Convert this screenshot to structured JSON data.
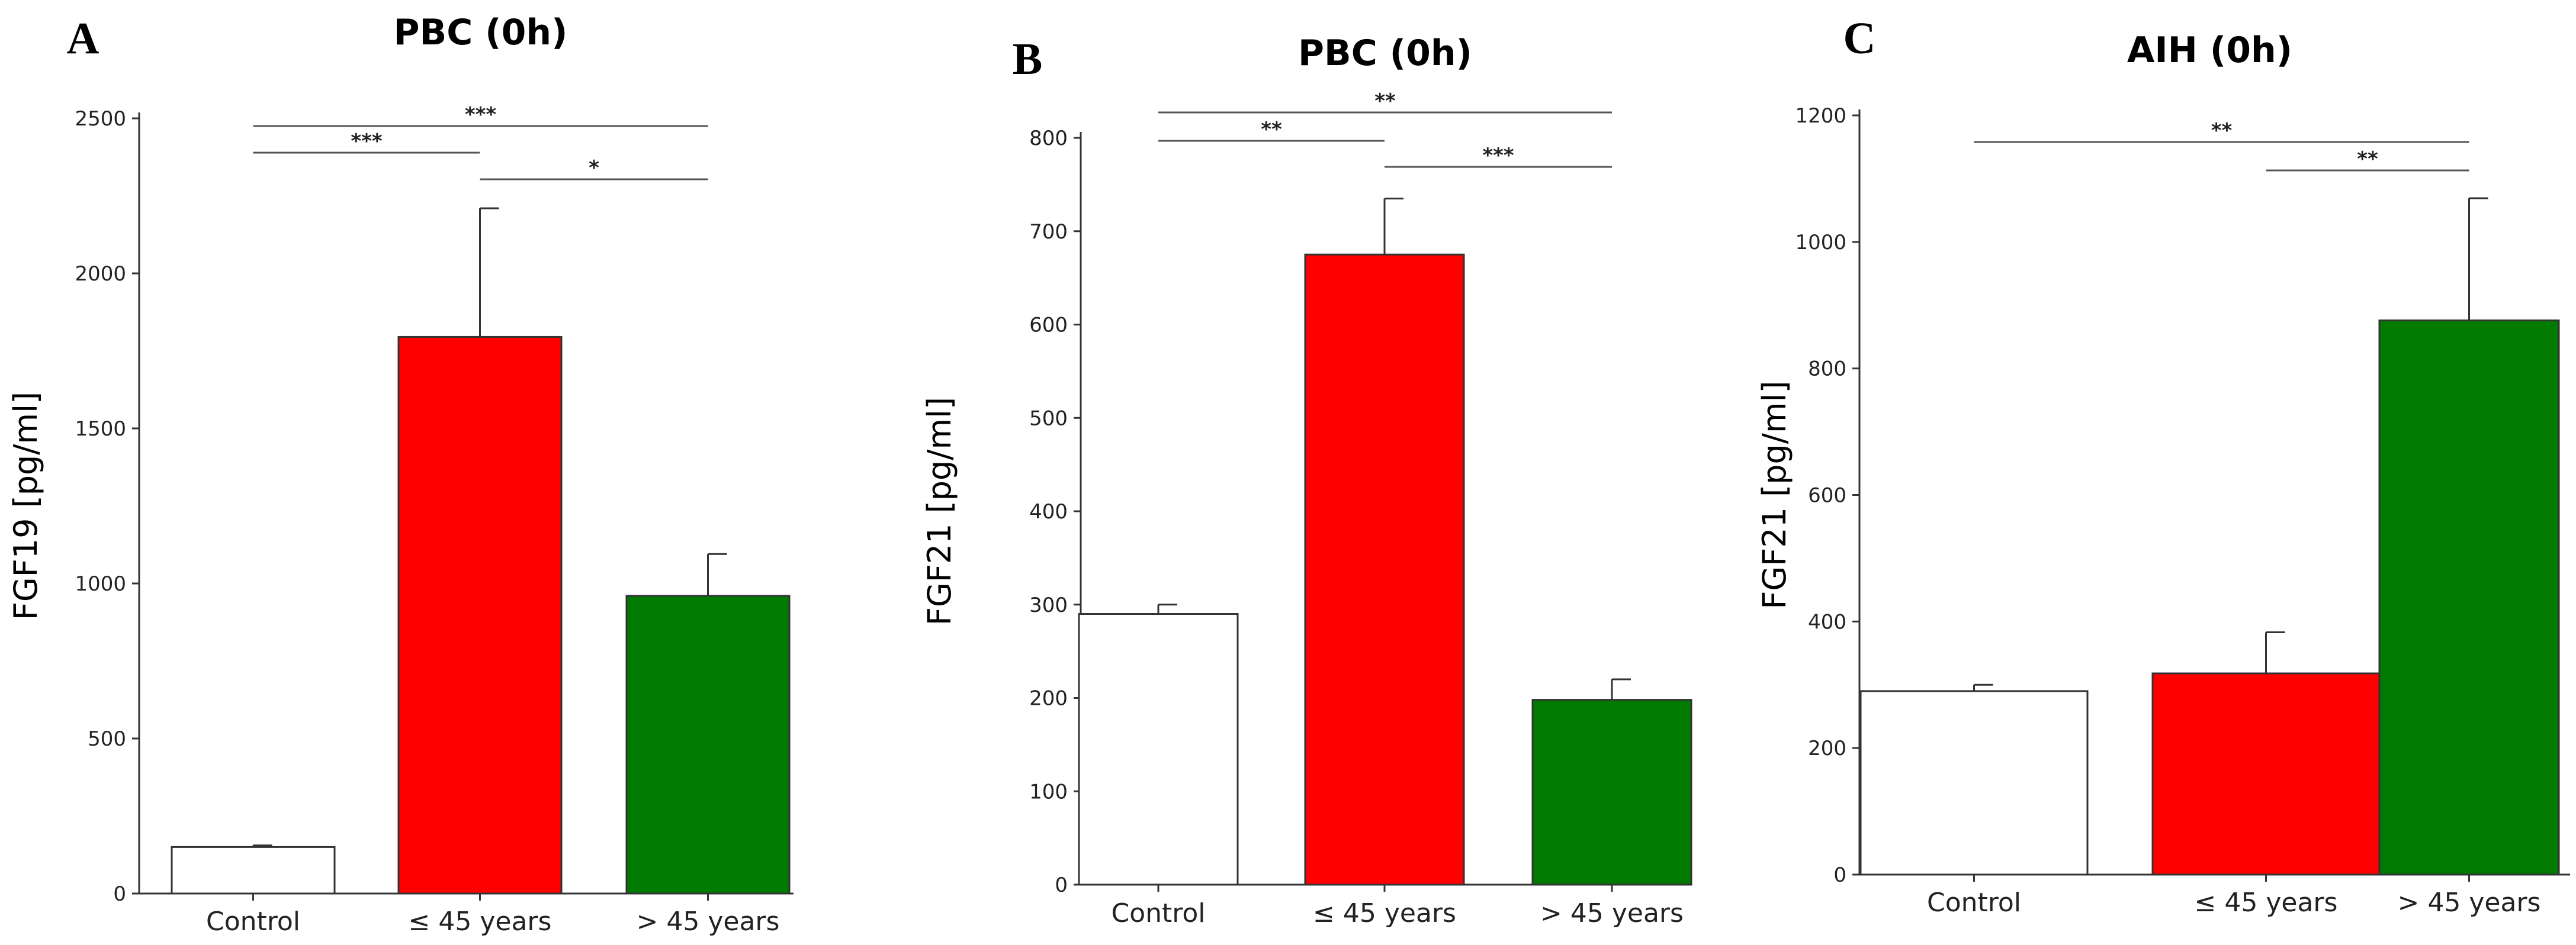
{
  "chart_data": [
    {
      "panel": "A",
      "type": "bar",
      "title": "PBC (0h)",
      "ylabel": "FGF19 [pg/ml]",
      "xlabel": "",
      "categories": [
        "Control",
        "≤ 45 years",
        "> 45 years"
      ],
      "values": [
        150,
        1795,
        960
      ],
      "errors": [
        5,
        415,
        135
      ],
      "colors": [
        "#ffffff",
        "#ff0000",
        "#007a00"
      ],
      "ylim": [
        0,
        2500
      ],
      "yticks": [
        0,
        500,
        1000,
        1500,
        2000,
        2500
      ],
      "significance": [
        {
          "from": 0,
          "to": 2,
          "label": "***",
          "level": 0
        },
        {
          "from": 0,
          "to": 1,
          "label": "***",
          "level": 1
        },
        {
          "from": 1,
          "to": 2,
          "label": "*",
          "level": 2
        }
      ]
    },
    {
      "panel": "B",
      "type": "bar",
      "title": "PBC (0h)",
      "ylabel": "FGF21 [pg/ml]",
      "xlabel": "",
      "categories": [
        "Control",
        "≤ 45 years",
        "> 45 years"
      ],
      "values": [
        290,
        675,
        198
      ],
      "errors": [
        10,
        60,
        22
      ],
      "colors": [
        "#ffffff",
        "#ff0000",
        "#007a00"
      ],
      "ylim": [
        0,
        800
      ],
      "yticks": [
        0,
        100,
        200,
        300,
        400,
        500,
        600,
        700,
        800
      ],
      "significance": [
        {
          "from": 0,
          "to": 2,
          "label": "**",
          "level": 0
        },
        {
          "from": 0,
          "to": 1,
          "label": "**",
          "level": 1
        },
        {
          "from": 1,
          "to": 2,
          "label": "***",
          "level": 2
        }
      ]
    },
    {
      "panel": "C",
      "type": "bar",
      "title": "AIH (0h)",
      "ylabel": "FGF21 [pg/ml]",
      "xlabel": "",
      "categories": [
        "Control",
        "≤ 45 years",
        "> 45 years"
      ],
      "values": [
        290,
        318,
        876
      ],
      "errors": [
        10,
        65,
        193
      ],
      "colors": [
        "#ffffff",
        "#ff0000",
        "#007a00"
      ],
      "ylim": [
        0,
        1200
      ],
      "yticks": [
        0,
        200,
        400,
        600,
        800,
        1000,
        1200
      ],
      "significance": [
        {
          "from": 0,
          "to": 2,
          "label": "**",
          "level": 0
        },
        {
          "from": 1,
          "to": 2,
          "label": "**",
          "level": 1
        }
      ]
    }
  ]
}
